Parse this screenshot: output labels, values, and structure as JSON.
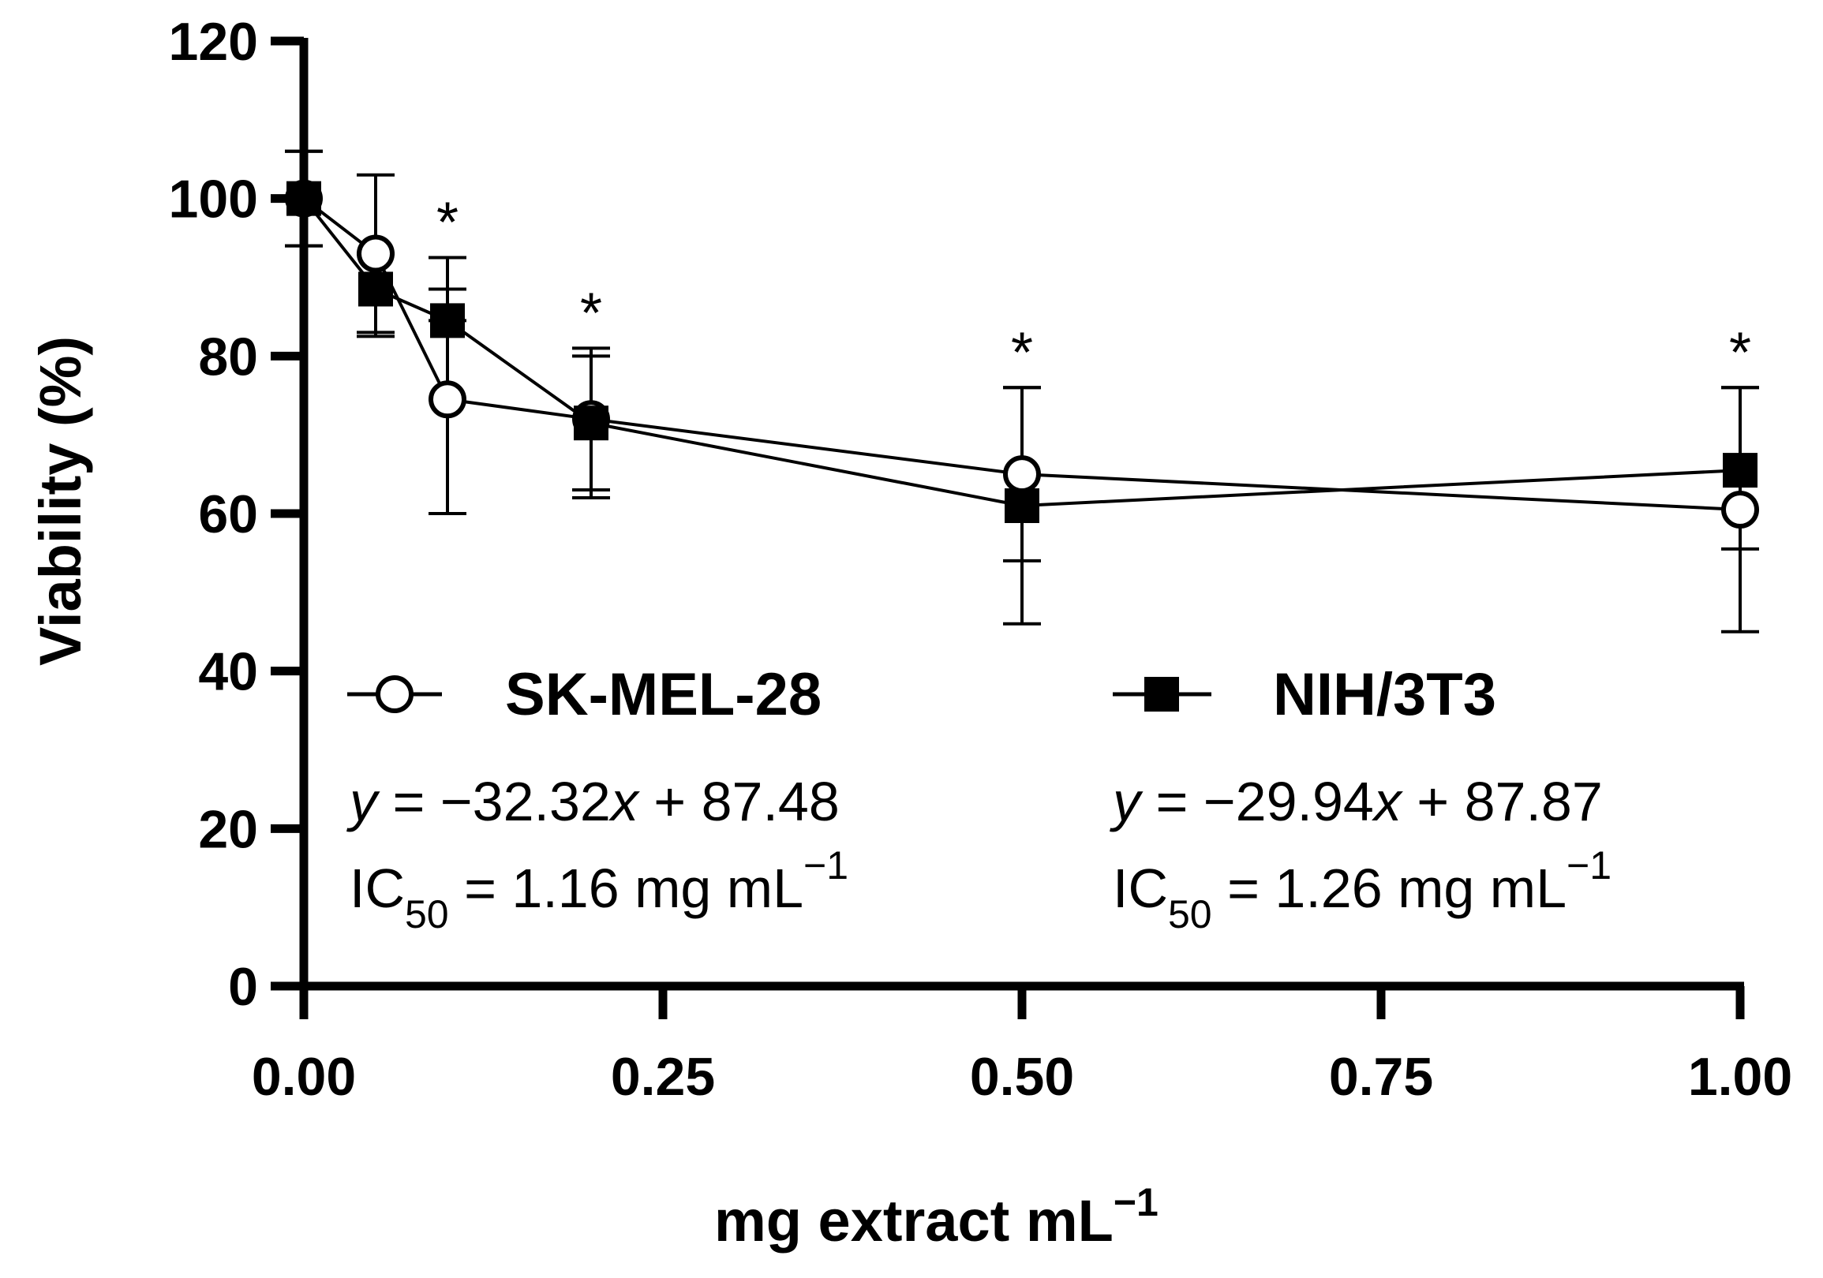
{
  "chart_data": {
    "type": "line",
    "xlabel": "mg extract mL",
    "xlabel_sup": "−1",
    "ylabel": "Viability (%)",
    "xlim": [
      0,
      1
    ],
    "ylim": [
      0,
      120
    ],
    "xticks": [
      0,
      0.25,
      0.5,
      0.75,
      1
    ],
    "xtick_labels": [
      "0.00",
      "0.25",
      "0.50",
      "0.75",
      "1.00"
    ],
    "yticks": [
      0,
      20,
      40,
      60,
      80,
      100,
      120
    ],
    "ytick_labels": [
      "0",
      "20",
      "40",
      "60",
      "80",
      "100",
      "120"
    ],
    "grid": false,
    "series": [
      {
        "name": "SK-MEL-28",
        "marker": "open-circle",
        "x": [
          0,
          0.05,
          0.1,
          0.2,
          0.5,
          1.0
        ],
        "y": [
          100,
          93,
          74.5,
          72,
          65,
          60.5
        ],
        "err_upper": [
          106,
          103,
          88.5,
          81,
          76,
          76
        ],
        "err_lower": [
          94,
          83,
          60,
          63,
          54,
          45
        ]
      },
      {
        "name": "NIH/3T3",
        "marker": "filled-square",
        "x": [
          0,
          0.05,
          0.1,
          0.2,
          0.5,
          1.0
        ],
        "y": [
          100,
          88.5,
          84.5,
          71.5,
          61,
          65.5
        ],
        "err_upper": [
          106,
          93,
          92.5,
          80,
          76,
          76
        ],
        "err_lower": [
          94,
          82.5,
          84.5,
          62,
          46,
          55.5
        ]
      }
    ],
    "significance": [
      {
        "x": 0.1,
        "label": "*"
      },
      {
        "x": 0.2,
        "label": "*"
      },
      {
        "x": 0.5,
        "label": "*"
      },
      {
        "x": 1.0,
        "label": "*"
      }
    ],
    "annotations": {
      "sk": {
        "eq_y": "y",
        "eq_rest": " = −32.32",
        "eq_x": "x",
        "eq_tail": " + 87.48",
        "ic_main": "IC",
        "ic_sub": "50",
        "ic_value": " = 1.16 mg mL",
        "ic_sup": "−1"
      },
      "nih": {
        "eq_y": "y",
        "eq_rest": " = −29.94",
        "eq_x": "x",
        "eq_tail": " + 87.87",
        "ic_main": "IC",
        "ic_sub": "50",
        "ic_value": " = 1.26 mg mL",
        "ic_sup": "−1"
      }
    }
  }
}
